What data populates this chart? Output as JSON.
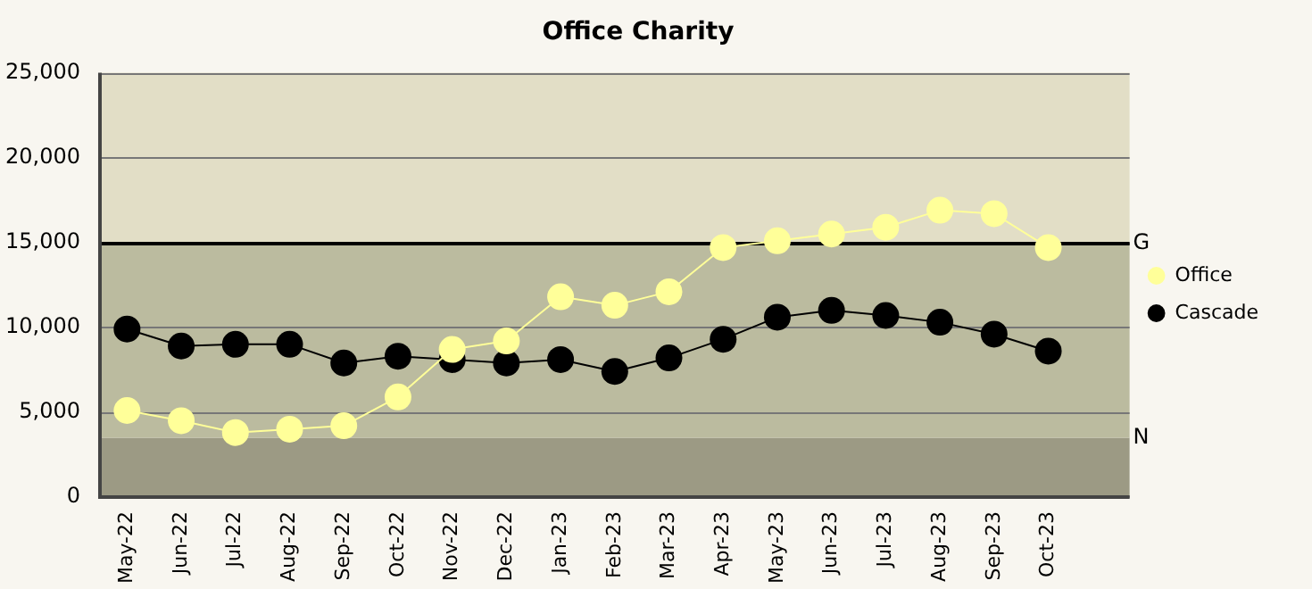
{
  "chart_data": {
    "type": "line",
    "title": "Office Charity",
    "categories": [
      "May-22",
      "Jun-22",
      "Jul-22",
      "Aug-22",
      "Sep-22",
      "Oct-22",
      "Nov-22",
      "Dec-22",
      "Jan-23",
      "Feb-23",
      "Mar-23",
      "Apr-23",
      "May-23",
      "Jun-23",
      "Jul-23",
      "Aug-23",
      "Sep-23",
      "Oct-23",
      null
    ],
    "series": [
      {
        "name": "Office",
        "color": "#ffff99",
        "values": [
          5100,
          4500,
          3800,
          4000,
          4200,
          5900,
          8700,
          9200,
          11800,
          11300,
          12100,
          14700,
          15100,
          15500,
          15900,
          16900,
          16700,
          14700,
          null
        ]
      },
      {
        "name": "Cascade",
        "color": "#000000",
        "values": [
          9900,
          8900,
          9000,
          9000,
          7900,
          8300,
          8100,
          7900,
          8100,
          7400,
          8200,
          9300,
          10600,
          11000,
          10700,
          10300,
          9600,
          8600,
          null
        ]
      }
    ],
    "ylim": [
      0,
      25000
    ],
    "yticks": [
      {
        "value": 0,
        "label": "0"
      },
      {
        "value": 5000,
        "label": "5,000"
      },
      {
        "value": 10000,
        "label": "10,000"
      },
      {
        "value": 15000,
        "label": "15,000"
      },
      {
        "value": 20000,
        "label": "20,000"
      },
      {
        "value": 25000,
        "label": "25,000"
      }
    ],
    "bands": [
      {
        "axis": "y",
        "from": 0,
        "to": 3500,
        "label": "N",
        "color": "#9c9a84"
      },
      {
        "axis": "y",
        "from": 3500,
        "to": 15000,
        "color": "#bbbb9f"
      },
      {
        "axis": "y",
        "from": 15000,
        "to": 25000,
        "color": "#e2dec6"
      }
    ],
    "ref_lines": [
      {
        "axis": "y",
        "value": 15000,
        "label": "G",
        "color": "#000000"
      }
    ],
    "grid": "y",
    "legend": "right",
    "marker": "circle",
    "line_style": "solid"
  }
}
